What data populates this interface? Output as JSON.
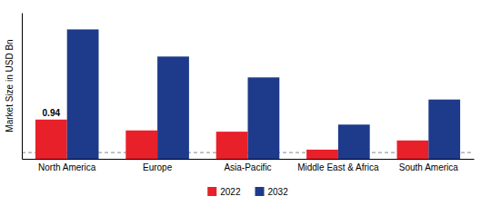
{
  "chart_data": {
    "type": "bar",
    "categories": [
      "North America",
      "Europe",
      "Asia-Pacific",
      "Middle East & Africa",
      "South America"
    ],
    "series": [
      {
        "name": "2022",
        "color": "#e8202a",
        "values": [
          0.94,
          0.68,
          0.65,
          0.22,
          0.44
        ]
      },
      {
        "name": "2032",
        "color": "#1e3a8a",
        "values": [
          3.1,
          2.45,
          1.95,
          0.82,
          1.42
        ]
      }
    ],
    "ylabel": "Market Size in USD Bn",
    "ylim": [
      0,
      3.5
    ],
    "tick_labels": "x",
    "grid": false,
    "legend": "bottom",
    "annotations": [
      {
        "text": "0.94",
        "category": "North America",
        "series": "2022"
      }
    ],
    "hlines": [
      {
        "y": 0.15,
        "color": "#888888",
        "line_style": "dashed"
      }
    ]
  }
}
